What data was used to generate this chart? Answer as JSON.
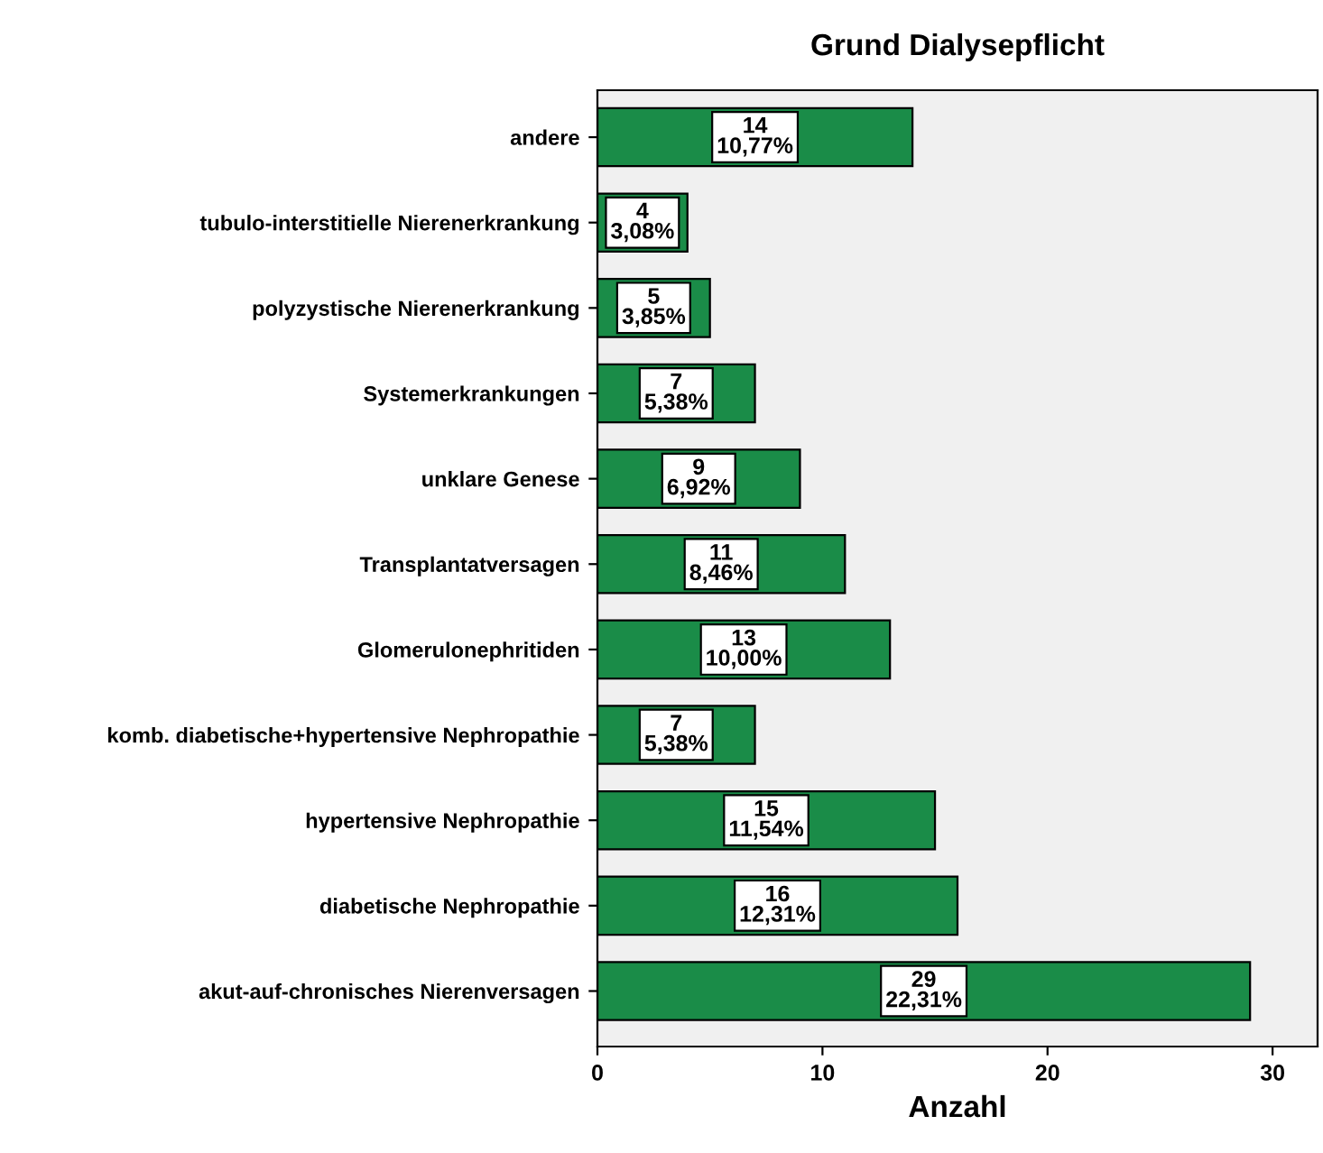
{
  "chart_data": {
    "type": "bar",
    "orientation": "horizontal",
    "title": "Grund Dialysepflicht",
    "xlabel": "Anzahl",
    "categories": [
      "andere",
      "tubulo-interstitielle Nierenerkrankung",
      "polyzystische Nierenerkrankung",
      "Systemerkrankungen",
      "unklare Genese",
      "Transplantatversagen",
      "Glomerulonephritiden",
      "komb. diabetische+hypertensive Nephropathie",
      "hypertensive Nephropathie",
      "diabetische Nephropathie",
      "akut-auf-chronisches Nierenversagen"
    ],
    "values": [
      14,
      4,
      5,
      7,
      9,
      11,
      13,
      7,
      15,
      16,
      29
    ],
    "value_labels": [
      "14\n10,77%",
      "4\n3,08%",
      "5\n3,85%",
      "7\n5,38%",
      "9\n6,92%",
      "11\n8,46%",
      "13\n10,00%",
      "7\n5,38%",
      "15\n11,54%",
      "16\n12,31%",
      "29\n22,31%"
    ],
    "color": "#1a8c48",
    "xlim": [
      0,
      32
    ],
    "xticks": [
      0,
      10,
      20,
      30
    ],
    "grid": false,
    "legend": false
  }
}
